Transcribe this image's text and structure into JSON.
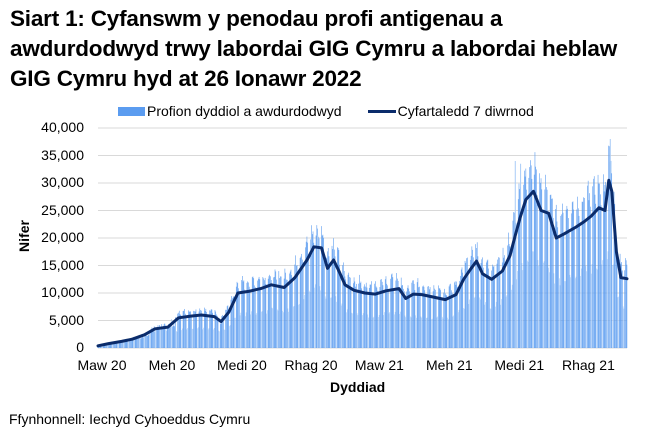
{
  "title": "Siart 1: Cyfanswm y penodau profi antigenau a awdurdodwyd trwy labordai GIG Cymru a labordai heblaw GIG Cymru hyd at 26 Ionawr 2022",
  "legend": {
    "bars": "Profion dyddiol a awdurdodwyd",
    "line": "Cyfartaledd 7 diwrnod"
  },
  "axes": {
    "ylabel": "Nifer",
    "xlabel": "Dyddiad",
    "yticks": [
      "40,000",
      "35,000",
      "30,000",
      "25,000",
      "20,000",
      "15,000",
      "10,000",
      "5,000",
      "0"
    ],
    "xticks": [
      "Maw 20",
      "Meh 20",
      "Medi 20",
      "Rhag 20",
      "Maw 21",
      "Meh 21",
      "Medi 21",
      "Rhag 21"
    ]
  },
  "source": "Ffynhonnell: Iechyd Cyhoeddus Cymru",
  "colors": {
    "bars": "#5b9cf0",
    "bars_light": "#a8cbf7",
    "line": "#0b2c6b",
    "grid": "#d9d9d9"
  },
  "chart_data": {
    "type": "bar",
    "title": "Siart 1: Cyfanswm y penodau profi antigenau a awdurdodwyd trwy labordai GIG Cymru a labordai heblaw GIG Cymru hyd at 26 Ionawr 2022",
    "xlabel": "Dyddiad",
    "ylabel": "Nifer",
    "ylim": [
      0,
      40000
    ],
    "ytick_step": 5000,
    "x_range": [
      "2020-03-01",
      "2022-01-26"
    ],
    "x_tick_labels": [
      "Maw 20",
      "Meh 20",
      "Medi 20",
      "Rhag 20",
      "Maw 21",
      "Meh 21",
      "Medi 21",
      "Rhag 21"
    ],
    "grid": true,
    "legend_position": "top",
    "series": [
      {
        "name": "Profion dyddiol a awdurdodwyd",
        "type": "bar",
        "note": "daily authorised tests; weekly peaks shown approximately",
        "weekly_peaks": {
          "x": [
            "2020-12-15",
            "2021-09-01",
            "2021-09-08",
            "2022-01-04"
          ],
          "values": [
            20500,
            34000,
            33500,
            38000
          ]
        }
      },
      {
        "name": "Cyfartaledd 7 diwrnod",
        "type": "line",
        "x": [
          "2020-03-01",
          "2020-03-15",
          "2020-04-01",
          "2020-04-15",
          "2020-05-01",
          "2020-05-15",
          "2020-06-01",
          "2020-06-15",
          "2020-07-01",
          "2020-07-15",
          "2020-08-01",
          "2020-08-10",
          "2020-08-20",
          "2020-09-01",
          "2020-09-15",
          "2020-10-01",
          "2020-10-15",
          "2020-11-01",
          "2020-11-15",
          "2020-12-01",
          "2020-12-10",
          "2020-12-20",
          "2020-12-28",
          "2021-01-05",
          "2021-01-12",
          "2021-01-20",
          "2021-02-01",
          "2021-02-15",
          "2021-03-01",
          "2021-03-15",
          "2021-04-01",
          "2021-04-10",
          "2021-04-20",
          "2021-05-01",
          "2021-05-15",
          "2021-06-01",
          "2021-06-15",
          "2021-06-25",
          "2021-07-05",
          "2021-07-12",
          "2021-07-20",
          "2021-08-01",
          "2021-08-15",
          "2021-08-25",
          "2021-09-01",
          "2021-09-08",
          "2021-09-15",
          "2021-09-25",
          "2021-10-05",
          "2021-10-15",
          "2021-10-25",
          "2021-11-05",
          "2021-11-20",
          "2021-12-01",
          "2021-12-10",
          "2021-12-20",
          "2021-12-28",
          "2022-01-02",
          "2022-01-06",
          "2022-01-12",
          "2022-01-18",
          "2022-01-26"
        ],
        "values": [
          400,
          800,
          1200,
          1600,
          2400,
          3500,
          3800,
          5500,
          5800,
          6000,
          5700,
          4800,
          6500,
          10000,
          10300,
          10800,
          11500,
          11000,
          12800,
          16000,
          18400,
          18200,
          14500,
          16000,
          14000,
          11500,
          10500,
          10000,
          9800,
          10400,
          10800,
          9000,
          9800,
          9700,
          9300,
          8800,
          9700,
          12500,
          14500,
          15800,
          13500,
          12500,
          14000,
          16800,
          20500,
          24000,
          27000,
          28500,
          25000,
          24500,
          20000,
          20800,
          22000,
          23000,
          24000,
          25500,
          25000,
          30500,
          28500,
          17500,
          12800,
          12600
        ]
      }
    ]
  }
}
